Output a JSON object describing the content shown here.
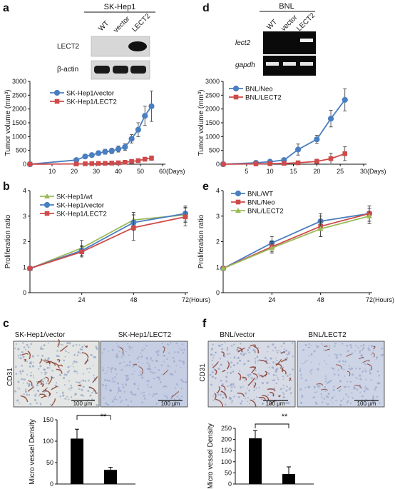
{
  "panels": {
    "a": {
      "letter": "a",
      "blot_title": "SK-Hep1",
      "lanes": [
        "WT",
        "vector",
        "LECT2"
      ],
      "rows": [
        "LECT2",
        "β-actin"
      ]
    },
    "d": {
      "letter": "d",
      "blot_title": "BNL",
      "lanes": [
        "WT",
        "vector",
        "LECT2"
      ],
      "rows": [
        "lect2",
        "gapdh"
      ]
    },
    "b": {
      "letter": "b"
    },
    "e": {
      "letter": "e"
    },
    "c": {
      "letter": "c",
      "side_label": "CD31",
      "images": [
        "SK-Hep1/vector",
        "SK-Hep1/LECT2"
      ],
      "scale_bar": "100 μm",
      "signif": "**"
    },
    "f": {
      "letter": "f",
      "side_label": "CD31",
      "images": [
        "BNL/vector",
        "BNL/LECT2"
      ],
      "scale_bar": "100 μm",
      "signif": "**"
    }
  },
  "colors": {
    "blue": "#4a7fc1",
    "red": "#cf4a4a",
    "green": "#9bbb59",
    "tissue": "#c9d3e6",
    "stain": "#8a3a2a"
  },
  "chart_data": [
    {
      "id": "a",
      "type": "line",
      "ylabel": "Tumor volume (mm³)",
      "xunit": "(Days)",
      "xlim": [
        0,
        60
      ],
      "ylim": [
        0,
        3000
      ],
      "xticks": [
        10,
        20,
        30,
        40,
        50,
        60
      ],
      "yticks": [
        0,
        500,
        1000,
        1500,
        2000,
        2500,
        3000
      ],
      "legend": "top-left",
      "series": [
        {
          "name": "SK-Hep1/vector",
          "color": "#4a7fc1",
          "marker": "circle",
          "x": [
            0,
            21,
            25,
            28,
            31,
            34,
            37,
            40,
            43,
            46,
            49,
            52,
            55
          ],
          "y": [
            0,
            150,
            280,
            330,
            400,
            450,
            480,
            550,
            620,
            920,
            1250,
            1750,
            2100
          ],
          "err": [
            0,
            30,
            40,
            50,
            80,
            90,
            100,
            110,
            120,
            150,
            250,
            350,
            550
          ]
        },
        {
          "name": "SK-Hep1/LECT2",
          "color": "#cf4a4a",
          "marker": "square",
          "x": [
            0,
            21,
            25,
            28,
            31,
            34,
            37,
            40,
            43,
            46,
            49,
            52,
            55
          ],
          "y": [
            0,
            10,
            15,
            20,
            25,
            30,
            40,
            50,
            70,
            100,
            130,
            180,
            220
          ],
          "err": [
            0,
            5,
            5,
            8,
            10,
            10,
            15,
            20,
            25,
            30,
            40,
            60,
            80
          ]
        }
      ]
    },
    {
      "id": "d",
      "type": "line",
      "ylabel": "Tumor volume (mm³)",
      "xunit": "(Days)",
      "xlim": [
        0,
        30
      ],
      "ylim": [
        0,
        3000
      ],
      "xticks": [
        5,
        10,
        15,
        20,
        25,
        30
      ],
      "yticks": [
        0,
        500,
        1000,
        1500,
        2000,
        2500,
        3000
      ],
      "legend": "top-left",
      "series": [
        {
          "name": "BNL/Neo",
          "color": "#4a7fc1",
          "marker": "circle",
          "x": [
            0,
            7,
            10,
            13,
            16,
            20,
            23,
            26
          ],
          "y": [
            0,
            50,
            90,
            150,
            530,
            900,
            1650,
            2330
          ],
          "err": [
            0,
            20,
            30,
            50,
            200,
            150,
            300,
            400
          ]
        },
        {
          "name": "BNL/LECT2",
          "color": "#cf4a4a",
          "marker": "square",
          "x": [
            0,
            7,
            10,
            13,
            16,
            20,
            23,
            26
          ],
          "y": [
            0,
            10,
            20,
            30,
            50,
            100,
            200,
            380
          ],
          "err": [
            0,
            5,
            10,
            10,
            20,
            80,
            200,
            250
          ]
        }
      ]
    },
    {
      "id": "b",
      "type": "line",
      "ylabel": "Proliferation ratio",
      "xunit": "(Hours)",
      "xlim": [
        0,
        72
      ],
      "ylim": [
        0,
        4
      ],
      "xticks": [
        24,
        48,
        72
      ],
      "yticks": [
        0,
        1,
        2,
        3,
        4
      ],
      "legend": "top-left",
      "series": [
        {
          "name": "SK-Hep1/wt",
          "color": "#9bbb59",
          "marker": "triangle",
          "x": [
            0,
            24,
            48,
            72
          ],
          "y": [
            0.95,
            1.75,
            2.85,
            3.05
          ],
          "err": [
            0,
            0.3,
            0.3,
            0.3
          ]
        },
        {
          "name": "SK-Hep1/vector",
          "color": "#4a7fc1",
          "marker": "circle",
          "x": [
            0,
            24,
            48,
            72
          ],
          "y": [
            0.95,
            1.65,
            2.75,
            3.1
          ],
          "err": [
            0,
            0.2,
            0.3,
            0.3
          ]
        },
        {
          "name": "SK-Hep1/LECT2",
          "color": "#cf4a4a",
          "marker": "square",
          "x": [
            0,
            24,
            48,
            72
          ],
          "y": [
            0.95,
            1.6,
            2.55,
            2.97
          ],
          "err": [
            0,
            0.2,
            0.5,
            0.35
          ]
        }
      ]
    },
    {
      "id": "e",
      "type": "line",
      "ylabel": "Proliferation ratio",
      "xunit": "(Hours)",
      "xlim": [
        0,
        72
      ],
      "ylim": [
        0,
        4
      ],
      "xticks": [
        24,
        48,
        72
      ],
      "yticks": [
        0,
        1,
        2,
        3,
        4
      ],
      "legend": "top-left",
      "series": [
        {
          "name": "BNL/WT",
          "color": "#4a7fc1",
          "marker": "circle",
          "x": [
            0,
            24,
            48,
            72
          ],
          "y": [
            0.95,
            1.95,
            2.8,
            3.1
          ],
          "err": [
            0,
            0.25,
            0.3,
            0.3
          ]
        },
        {
          "name": "BNL/Neo",
          "color": "#cf4a4a",
          "marker": "square",
          "x": [
            0,
            24,
            48,
            72
          ],
          "y": [
            0.95,
            1.8,
            2.6,
            3.1
          ],
          "err": [
            0,
            0.2,
            0.4,
            0.3
          ]
        },
        {
          "name": "BNL/LECT2",
          "color": "#9bbb59",
          "marker": "triangle",
          "x": [
            0,
            24,
            48,
            72
          ],
          "y": [
            0.95,
            1.75,
            2.5,
            3.0
          ],
          "err": [
            0,
            0.2,
            0.3,
            0.3
          ]
        }
      ]
    },
    {
      "id": "c",
      "type": "bar",
      "ylabel": "Micro vessel Density",
      "ylim": [
        0,
        150
      ],
      "yticks": [
        0,
        50,
        100,
        150
      ],
      "categories": [
        "vector",
        "LECT2"
      ],
      "values": [
        106,
        33
      ],
      "err": [
        22,
        6
      ]
    },
    {
      "id": "f",
      "type": "bar",
      "ylabel": "Micro vessel Density",
      "ylim": [
        0,
        250
      ],
      "yticks": [
        0,
        50,
        100,
        150,
        200,
        250
      ],
      "categories": [
        "vector",
        "LECT2"
      ],
      "values": [
        205,
        45
      ],
      "err": [
        35,
        32
      ]
    }
  ]
}
